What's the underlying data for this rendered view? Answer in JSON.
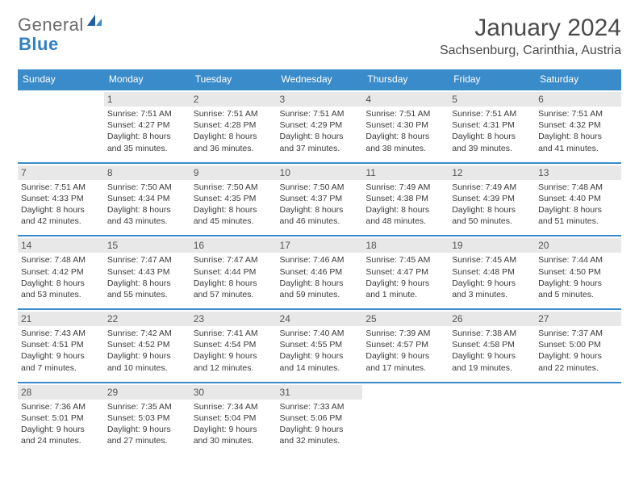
{
  "brand": {
    "part1": "General",
    "part2": "Blue"
  },
  "title": "January 2024",
  "subtitle": "Sachsenburg, Carinthia, Austria",
  "colors": {
    "header_bg": "#3a8bc9",
    "header_text": "#ffffff",
    "daynum_bg": "#e8e8e8",
    "divider": "#3a8bc9",
    "text": "#3a3a3a",
    "brand_gray": "#6b6b6b",
    "brand_blue": "#2f7fc2"
  },
  "weekdays": [
    "Sunday",
    "Monday",
    "Tuesday",
    "Wednesday",
    "Thursday",
    "Friday",
    "Saturday"
  ],
  "grid": [
    [
      null,
      {
        "n": "1",
        "sr": "Sunrise: 7:51 AM",
        "ss": "Sunset: 4:27 PM",
        "d1": "Daylight: 8 hours",
        "d2": "and 35 minutes."
      },
      {
        "n": "2",
        "sr": "Sunrise: 7:51 AM",
        "ss": "Sunset: 4:28 PM",
        "d1": "Daylight: 8 hours",
        "d2": "and 36 minutes."
      },
      {
        "n": "3",
        "sr": "Sunrise: 7:51 AM",
        "ss": "Sunset: 4:29 PM",
        "d1": "Daylight: 8 hours",
        "d2": "and 37 minutes."
      },
      {
        "n": "4",
        "sr": "Sunrise: 7:51 AM",
        "ss": "Sunset: 4:30 PM",
        "d1": "Daylight: 8 hours",
        "d2": "and 38 minutes."
      },
      {
        "n": "5",
        "sr": "Sunrise: 7:51 AM",
        "ss": "Sunset: 4:31 PM",
        "d1": "Daylight: 8 hours",
        "d2": "and 39 minutes."
      },
      {
        "n": "6",
        "sr": "Sunrise: 7:51 AM",
        "ss": "Sunset: 4:32 PM",
        "d1": "Daylight: 8 hours",
        "d2": "and 41 minutes."
      }
    ],
    [
      {
        "n": "7",
        "sr": "Sunrise: 7:51 AM",
        "ss": "Sunset: 4:33 PM",
        "d1": "Daylight: 8 hours",
        "d2": "and 42 minutes."
      },
      {
        "n": "8",
        "sr": "Sunrise: 7:50 AM",
        "ss": "Sunset: 4:34 PM",
        "d1": "Daylight: 8 hours",
        "d2": "and 43 minutes."
      },
      {
        "n": "9",
        "sr": "Sunrise: 7:50 AM",
        "ss": "Sunset: 4:35 PM",
        "d1": "Daylight: 8 hours",
        "d2": "and 45 minutes."
      },
      {
        "n": "10",
        "sr": "Sunrise: 7:50 AM",
        "ss": "Sunset: 4:37 PM",
        "d1": "Daylight: 8 hours",
        "d2": "and 46 minutes."
      },
      {
        "n": "11",
        "sr": "Sunrise: 7:49 AM",
        "ss": "Sunset: 4:38 PM",
        "d1": "Daylight: 8 hours",
        "d2": "and 48 minutes."
      },
      {
        "n": "12",
        "sr": "Sunrise: 7:49 AM",
        "ss": "Sunset: 4:39 PM",
        "d1": "Daylight: 8 hours",
        "d2": "and 50 minutes."
      },
      {
        "n": "13",
        "sr": "Sunrise: 7:48 AM",
        "ss": "Sunset: 4:40 PM",
        "d1": "Daylight: 8 hours",
        "d2": "and 51 minutes."
      }
    ],
    [
      {
        "n": "14",
        "sr": "Sunrise: 7:48 AM",
        "ss": "Sunset: 4:42 PM",
        "d1": "Daylight: 8 hours",
        "d2": "and 53 minutes."
      },
      {
        "n": "15",
        "sr": "Sunrise: 7:47 AM",
        "ss": "Sunset: 4:43 PM",
        "d1": "Daylight: 8 hours",
        "d2": "and 55 minutes."
      },
      {
        "n": "16",
        "sr": "Sunrise: 7:47 AM",
        "ss": "Sunset: 4:44 PM",
        "d1": "Daylight: 8 hours",
        "d2": "and 57 minutes."
      },
      {
        "n": "17",
        "sr": "Sunrise: 7:46 AM",
        "ss": "Sunset: 4:46 PM",
        "d1": "Daylight: 8 hours",
        "d2": "and 59 minutes."
      },
      {
        "n": "18",
        "sr": "Sunrise: 7:45 AM",
        "ss": "Sunset: 4:47 PM",
        "d1": "Daylight: 9 hours",
        "d2": "and 1 minute."
      },
      {
        "n": "19",
        "sr": "Sunrise: 7:45 AM",
        "ss": "Sunset: 4:48 PM",
        "d1": "Daylight: 9 hours",
        "d2": "and 3 minutes."
      },
      {
        "n": "20",
        "sr": "Sunrise: 7:44 AM",
        "ss": "Sunset: 4:50 PM",
        "d1": "Daylight: 9 hours",
        "d2": "and 5 minutes."
      }
    ],
    [
      {
        "n": "21",
        "sr": "Sunrise: 7:43 AM",
        "ss": "Sunset: 4:51 PM",
        "d1": "Daylight: 9 hours",
        "d2": "and 7 minutes."
      },
      {
        "n": "22",
        "sr": "Sunrise: 7:42 AM",
        "ss": "Sunset: 4:52 PM",
        "d1": "Daylight: 9 hours",
        "d2": "and 10 minutes."
      },
      {
        "n": "23",
        "sr": "Sunrise: 7:41 AM",
        "ss": "Sunset: 4:54 PM",
        "d1": "Daylight: 9 hours",
        "d2": "and 12 minutes."
      },
      {
        "n": "24",
        "sr": "Sunrise: 7:40 AM",
        "ss": "Sunset: 4:55 PM",
        "d1": "Daylight: 9 hours",
        "d2": "and 14 minutes."
      },
      {
        "n": "25",
        "sr": "Sunrise: 7:39 AM",
        "ss": "Sunset: 4:57 PM",
        "d1": "Daylight: 9 hours",
        "d2": "and 17 minutes."
      },
      {
        "n": "26",
        "sr": "Sunrise: 7:38 AM",
        "ss": "Sunset: 4:58 PM",
        "d1": "Daylight: 9 hours",
        "d2": "and 19 minutes."
      },
      {
        "n": "27",
        "sr": "Sunrise: 7:37 AM",
        "ss": "Sunset: 5:00 PM",
        "d1": "Daylight: 9 hours",
        "d2": "and 22 minutes."
      }
    ],
    [
      {
        "n": "28",
        "sr": "Sunrise: 7:36 AM",
        "ss": "Sunset: 5:01 PM",
        "d1": "Daylight: 9 hours",
        "d2": "and 24 minutes."
      },
      {
        "n": "29",
        "sr": "Sunrise: 7:35 AM",
        "ss": "Sunset: 5:03 PM",
        "d1": "Daylight: 9 hours",
        "d2": "and 27 minutes."
      },
      {
        "n": "30",
        "sr": "Sunrise: 7:34 AM",
        "ss": "Sunset: 5:04 PM",
        "d1": "Daylight: 9 hours",
        "d2": "and 30 minutes."
      },
      {
        "n": "31",
        "sr": "Sunrise: 7:33 AM",
        "ss": "Sunset: 5:06 PM",
        "d1": "Daylight: 9 hours",
        "d2": "and 32 minutes."
      },
      null,
      null,
      null
    ]
  ]
}
